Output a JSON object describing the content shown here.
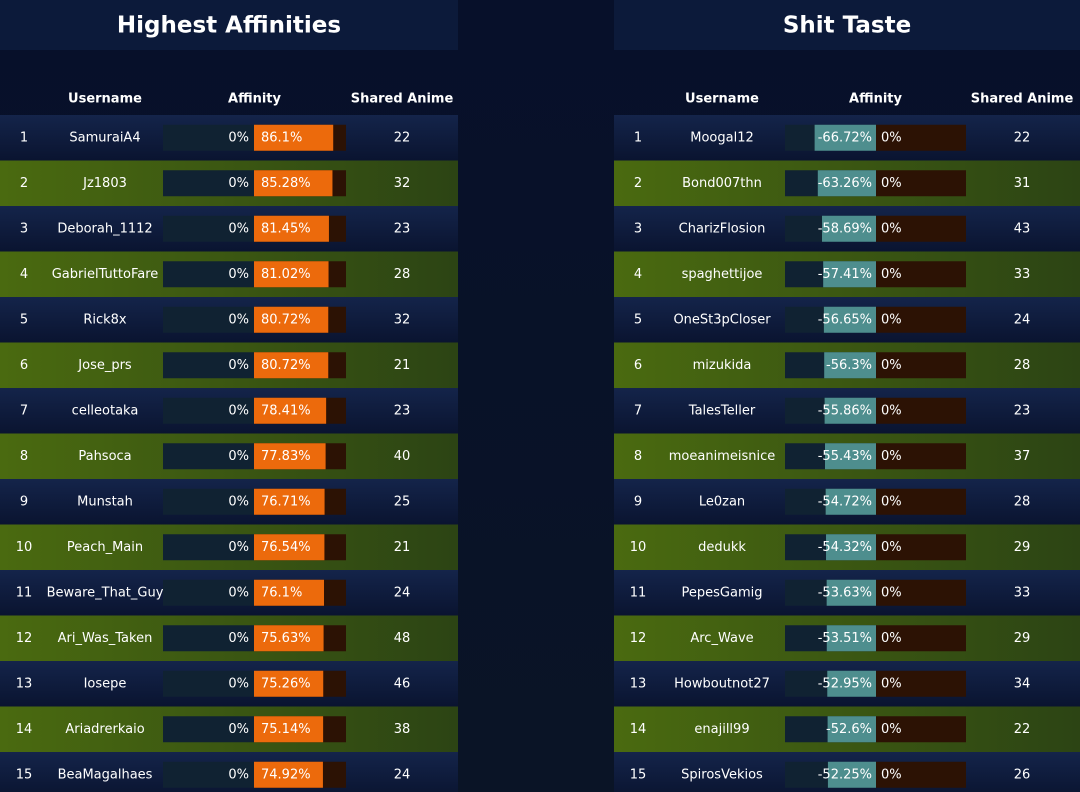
{
  "tables": [
    {
      "title": "Highest Affinities",
      "headers": [
        "Username",
        "Affinity",
        "Shared Anime"
      ],
      "bar_zero_label": "0%",
      "rows": [
        {
          "rank": 1,
          "username": "SamuraiA4",
          "affinity": 86.1,
          "affinity_label": "86.1%",
          "shared": 22
        },
        {
          "rank": 2,
          "username": "Jz1803",
          "affinity": 85.28,
          "affinity_label": "85.28%",
          "shared": 32
        },
        {
          "rank": 3,
          "username": "Deborah_1112",
          "affinity": 81.45,
          "affinity_label": "81.45%",
          "shared": 23
        },
        {
          "rank": 4,
          "username": "GabrielTuttoFare",
          "affinity": 81.02,
          "affinity_label": "81.02%",
          "shared": 28
        },
        {
          "rank": 5,
          "username": "Rick8x",
          "affinity": 80.72,
          "affinity_label": "80.72%",
          "shared": 32
        },
        {
          "rank": 6,
          "username": "Jose_prs",
          "affinity": 80.72,
          "affinity_label": "80.72%",
          "shared": 21
        },
        {
          "rank": 7,
          "username": "celleotaka",
          "affinity": 78.41,
          "affinity_label": "78.41%",
          "shared": 23
        },
        {
          "rank": 8,
          "username": "Pahsoca",
          "affinity": 77.83,
          "affinity_label": "77.83%",
          "shared": 40
        },
        {
          "rank": 9,
          "username": "Munstah",
          "affinity": 76.71,
          "affinity_label": "76.71%",
          "shared": 25
        },
        {
          "rank": 10,
          "username": "Peach_Main",
          "affinity": 76.54,
          "affinity_label": "76.54%",
          "shared": 21
        },
        {
          "rank": 11,
          "username": "Beware_That_Guy",
          "affinity": 76.1,
          "affinity_label": "76.1%",
          "shared": 24
        },
        {
          "rank": 12,
          "username": "Ari_Was_Taken",
          "affinity": 75.63,
          "affinity_label": "75.63%",
          "shared": 48
        },
        {
          "rank": 13,
          "username": "Iosepe",
          "affinity": 75.26,
          "affinity_label": "75.26%",
          "shared": 46
        },
        {
          "rank": 14,
          "username": "Ariadrerkaio",
          "affinity": 75.14,
          "affinity_label": "75.14%",
          "shared": 38
        },
        {
          "rank": 15,
          "username": "BeaMagalhaes",
          "affinity": 74.92,
          "affinity_label": "74.92%",
          "shared": 24
        }
      ]
    },
    {
      "title": "Shit Taste",
      "headers": [
        "Username",
        "Affinity",
        "Shared Anime"
      ],
      "bar_zero_label": "0%",
      "rows": [
        {
          "rank": 1,
          "username": "Moogal12",
          "affinity": -66.72,
          "affinity_label": "-66.72%",
          "shared": 22
        },
        {
          "rank": 2,
          "username": "Bond007thn",
          "affinity": -63.26,
          "affinity_label": "-63.26%",
          "shared": 31
        },
        {
          "rank": 3,
          "username": "CharizFlosion",
          "affinity": -58.69,
          "affinity_label": "-58.69%",
          "shared": 43
        },
        {
          "rank": 4,
          "username": "spaghettijoe",
          "affinity": -57.41,
          "affinity_label": "-57.41%",
          "shared": 33
        },
        {
          "rank": 5,
          "username": "OneSt3pCloser",
          "affinity": -56.65,
          "affinity_label": "-56.65%",
          "shared": 24
        },
        {
          "rank": 6,
          "username": "mizukida",
          "affinity": -56.3,
          "affinity_label": "-56.3%",
          "shared": 28
        },
        {
          "rank": 7,
          "username": "TalesTeller",
          "affinity": -55.86,
          "affinity_label": "-55.86%",
          "shared": 23
        },
        {
          "rank": 8,
          "username": "moeanimeisnice",
          "affinity": -55.43,
          "affinity_label": "-55.43%",
          "shared": 37
        },
        {
          "rank": 9,
          "username": "Le0zan",
          "affinity": -54.72,
          "affinity_label": "-54.72%",
          "shared": 28
        },
        {
          "rank": 10,
          "username": "dedukk",
          "affinity": -54.32,
          "affinity_label": "-54.32%",
          "shared": 29
        },
        {
          "rank": 11,
          "username": "PepesGamig",
          "affinity": -53.63,
          "affinity_label": "-53.63%",
          "shared": 33
        },
        {
          "rank": 12,
          "username": "Arc_Wave",
          "affinity": -53.51,
          "affinity_label": "-53.51%",
          "shared": 29
        },
        {
          "rank": 13,
          "username": "Howboutnot27",
          "affinity": -52.95,
          "affinity_label": "-52.95%",
          "shared": 34
        },
        {
          "rank": 14,
          "username": "enajill99",
          "affinity": -52.6,
          "affinity_label": "-52.6%",
          "shared": 22
        },
        {
          "rank": 15,
          "username": "SpirosVekios",
          "affinity": -52.25,
          "affinity_label": "-52.25%",
          "shared": 26
        }
      ]
    }
  ]
}
